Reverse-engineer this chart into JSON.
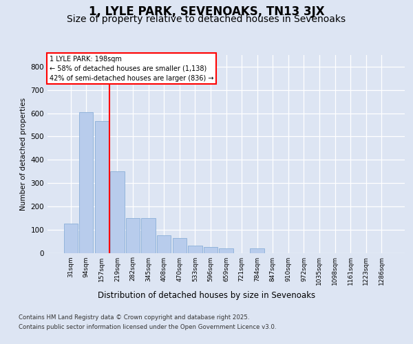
{
  "title1": "1, LYLE PARK, SEVENOAKS, TN13 3JX",
  "title2": "Size of property relative to detached houses in Sevenoaks",
  "xlabel": "Distribution of detached houses by size in Sevenoaks",
  "ylabel": "Number of detached properties",
  "categories": [
    "31sqm",
    "94sqm",
    "157sqm",
    "219sqm",
    "282sqm",
    "345sqm",
    "408sqm",
    "470sqm",
    "533sqm",
    "596sqm",
    "659sqm",
    "721sqm",
    "784sqm",
    "847sqm",
    "910sqm",
    "972sqm",
    "1035sqm",
    "1098sqm",
    "1161sqm",
    "1223sqm",
    "1286sqm"
  ],
  "values": [
    125,
    605,
    565,
    350,
    150,
    150,
    75,
    65,
    30,
    25,
    20,
    0,
    18,
    0,
    0,
    0,
    0,
    0,
    0,
    0,
    0
  ],
  "bar_color": "#b8ccec",
  "bar_edge_color": "#8aafd8",
  "red_line_x": 2.5,
  "annotation_line1": "1 LYLE PARK: 198sqm",
  "annotation_line2": "← 58% of detached houses are smaller (1,138)",
  "annotation_line3": "42% of semi-detached houses are larger (836) →",
  "footer1": "Contains HM Land Registry data © Crown copyright and database right 2025.",
  "footer2": "Contains public sector information licensed under the Open Government Licence v3.0.",
  "ylim_max": 850,
  "yticks": [
    0,
    100,
    200,
    300,
    400,
    500,
    600,
    700,
    800
  ],
  "bg_color": "#dde5f3",
  "title1_fontsize": 12,
  "title2_fontsize": 10
}
